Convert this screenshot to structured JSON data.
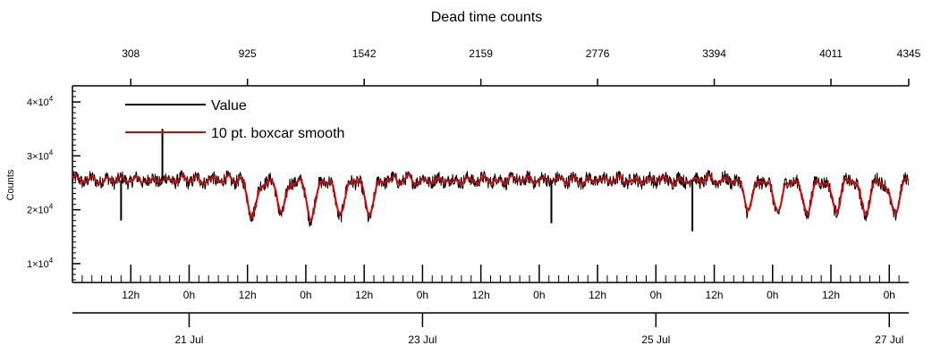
{
  "chart_data": {
    "type": "line",
    "title": "Dead time counts",
    "xlabel": "",
    "ylabel": "Counts",
    "ylim": [
      6500,
      43000
    ],
    "xlim_hours": [
      0,
      172
    ],
    "x_axis_note": "time axis; hour 0 = 20 Jul 03:00",
    "top_axis": {
      "ticks": [
        {
          "label": "308"
        },
        {
          "label": "925"
        },
        {
          "label": "1542"
        },
        {
          "label": "2159"
        },
        {
          "label": "2776"
        },
        {
          "label": "3394"
        },
        {
          "label": "4011"
        },
        {
          "label": "4345"
        }
      ],
      "tick_hours": [
        12,
        36,
        60,
        84,
        108,
        132,
        156,
        172
      ]
    },
    "y_axis": {
      "major_ticks": [
        {
          "value": 10000,
          "label": "1×10",
          "exp": "4"
        },
        {
          "value": 20000,
          "label": "2×10",
          "exp": "4"
        },
        {
          "value": 30000,
          "label": "3×10",
          "exp": "4"
        },
        {
          "value": 40000,
          "label": "4×10",
          "exp": "4"
        }
      ],
      "minor_step": 1000
    },
    "hour_axis": {
      "labels": [
        "12h",
        "0h",
        "12h",
        "0h",
        "12h",
        "0h",
        "12h",
        "0h",
        "12h",
        "0h",
        "12h",
        "0h",
        "12h",
        "0h"
      ],
      "tick_hours": [
        12,
        24,
        36,
        48,
        60,
        72,
        84,
        96,
        108,
        120,
        132,
        144,
        156,
        168
      ],
      "minor_step_hours": 2
    },
    "date_axis": {
      "labels": [
        "21 Jul",
        "23 Jul",
        "25 Jul",
        "27 Jul"
      ],
      "tick_hours": [
        24,
        72,
        120,
        168
      ]
    },
    "series": [
      {
        "name": "Value",
        "color": "#000000"
      },
      {
        "name": "10 pt. boxcar smooth",
        "color": "#e00000"
      }
    ],
    "baseline": 25500,
    "dips": [
      {
        "hour": 37,
        "min": 19000
      },
      {
        "hour": 43,
        "min": 19500
      },
      {
        "hour": 49,
        "min": 18500
      },
      {
        "hour": 55,
        "min": 19000
      },
      {
        "hour": 61,
        "min": 18800
      },
      {
        "hour": 139,
        "min": 20000
      },
      {
        "hour": 145,
        "min": 19500
      },
      {
        "hour": 151,
        "min": 19500
      },
      {
        "hour": 157,
        "min": 20000
      },
      {
        "hour": 163,
        "min": 19300
      },
      {
        "hour": 169,
        "min": 19000
      }
    ],
    "spikes": [
      {
        "hour": 10,
        "value": 18000
      },
      {
        "hour": 18.5,
        "value": 35000
      },
      {
        "hour": 98.5,
        "value": 17500
      },
      {
        "hour": 127.5,
        "value": 16000
      }
    ]
  }
}
